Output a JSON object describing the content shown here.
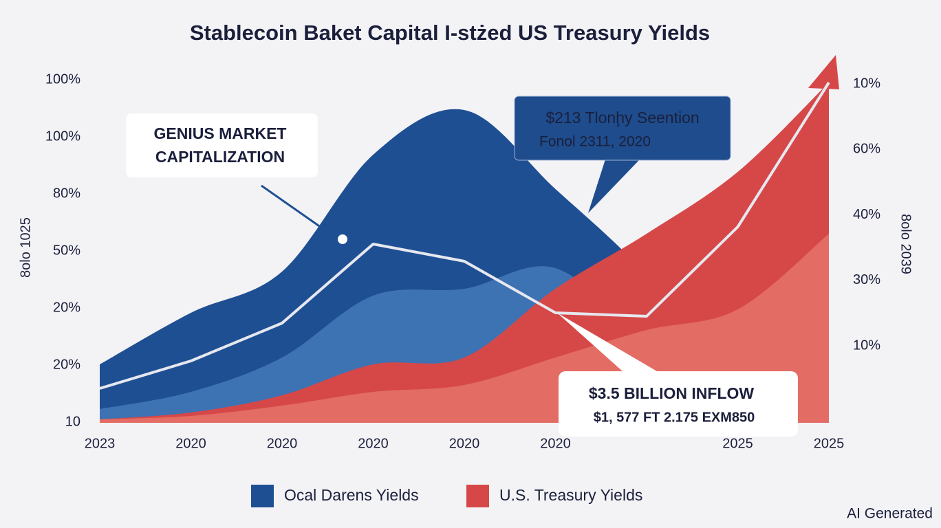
{
  "chart_data": {
    "type": "area",
    "title": "Stablecoin Baket Capital I-stżed US Treasury Yields",
    "categories": [
      "2023",
      "2020",
      "2020",
      "2020",
      "2020",
      "2020",
      null,
      "2025",
      "2025"
    ],
    "ylim": [
      0,
      100
    ],
    "left_axis_title": "8olo 1025",
    "right_axis_title": "8olo 2039",
    "left_axis_labels": [
      "100%",
      "100%",
      "80%",
      "50%",
      "20%",
      "20%",
      "10"
    ],
    "right_axis_labels": [
      "10%",
      "60%",
      "40%",
      "30%",
      "10%"
    ],
    "series": [
      {
        "name": "Ocal Darens Yields",
        "color": "#1f4f93",
        "values": [
          17,
          32,
          44,
          78,
          91,
          68,
          43,
          10,
          0
        ]
      },
      {
        "color": "#3d72b3",
        "values": [
          4,
          9,
          19,
          37,
          39,
          45,
          23,
          3,
          0
        ]
      },
      {
        "name": "U.S. Treasury Yields",
        "color": "#d64848",
        "values": [
          1,
          3,
          8,
          17,
          19,
          39,
          55,
          73,
          99
        ]
      },
      {
        "color": "#e36c64",
        "values": [
          1,
          2,
          5,
          9,
          11,
          19,
          27,
          33,
          55
        ]
      },
      {
        "type": "line",
        "color": "#e6e8ef",
        "values": [
          10,
          18,
          29,
          52,
          47,
          32,
          31,
          57,
          99
        ]
      }
    ],
    "annotations": [
      {
        "lines": [
          "GENIUS MARKET",
          "CAPITALIZATION"
        ]
      },
      {
        "lines": [
          "$213 Tlonḩy Seention",
          "Fonol 2311, 2020"
        ]
      },
      {
        "lines": [
          "$3.5 BILLION INFLOW",
          "$1, 577 FT 2.175 EXM850"
        ]
      }
    ],
    "watermark": "AI Generated"
  }
}
